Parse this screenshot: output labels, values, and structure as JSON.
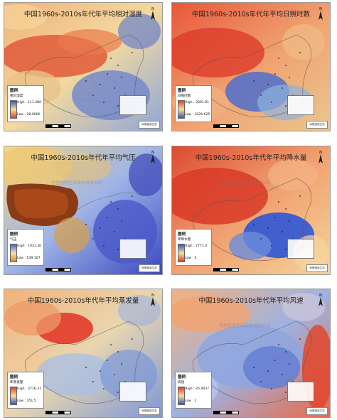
{
  "panels": [
    {
      "id": "humidity",
      "title": "中国1960s-2010s年代年平均相对湿度",
      "legend_heading": "图例",
      "legend_variable": "相对湿度",
      "legend_high": "High : 111.386",
      "legend_low": "Low : 28.9000",
      "ramp_high_color": "#3b54b6",
      "ramp_low_color": "#e0402a",
      "watermark": "",
      "credit": "地理遥感生态"
    },
    {
      "id": "sunshine",
      "title": "中国1960s-2010s年代年平均日照时数",
      "legend_heading": "图例",
      "legend_variable": "日照时数",
      "legend_high": "High : 3091.81",
      "legend_low": "Low : 1026.625",
      "ramp_high_color": "#e0402a",
      "ramp_low_color": "#3b54b6",
      "watermark": "",
      "credit": "地理遥感生态"
    },
    {
      "id": "pressure",
      "title": "中国1960s-2010s年代年平均气压",
      "legend_heading": "图例",
      "legend_variable": "气压",
      "legend_high": "High : 1031.30",
      "legend_low": "Low : 539.107",
      "ramp_high_color": "#4f5cc7",
      "ramp_low_color": "#d98a2b",
      "watermark": "地理遥感生态技术有限公司",
      "credit": "地理遥感生态"
    },
    {
      "id": "precipitation",
      "title": "中国1960s-2010s年代年平均降水量",
      "legend_heading": "图例",
      "legend_variable": "年降水量",
      "legend_high": "High : 2771.3",
      "legend_low": "Low : 0",
      "ramp_high_color": "#3b54b6",
      "ramp_low_color": "#e0402a",
      "watermark": "地理遥感生态技术有限公司",
      "credit": "地理遥感生态"
    },
    {
      "id": "evaporation",
      "title": "中国1960s-2010s年代年平均蒸发量",
      "legend_heading": "图例",
      "legend_variable": "年蒸发量",
      "legend_high": "High : 3716.31",
      "legend_low": "Low : 351.5",
      "ramp_high_color": "#e0402a",
      "ramp_low_color": "#3b54b6",
      "watermark": "",
      "credit": "地理遥感生态"
    },
    {
      "id": "windspeed",
      "title": "中国1960s-2010s年代年平均风速",
      "legend_heading": "图例",
      "legend_variable": "风速",
      "legend_high": "High : 26.4637",
      "legend_low": "Low : 1",
      "ramp_high_color": "#e0402a",
      "ramp_low_color": "#3b54b6",
      "watermark": "地理遥感生态技术有限公司",
      "credit": "地理遥感生态"
    }
  ]
}
